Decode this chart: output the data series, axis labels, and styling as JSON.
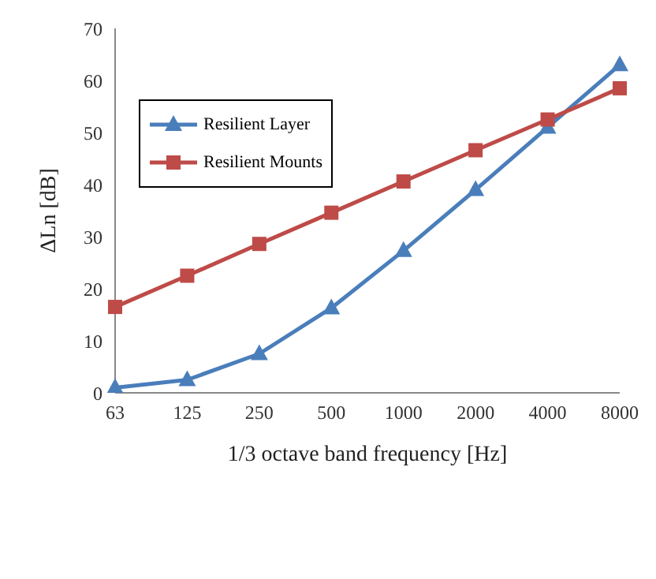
{
  "chart_data": {
    "type": "line",
    "xlabel": "1/3 octave band frequency [Hz]",
    "ylabel": "ΔLn [dB]",
    "categories": [
      "63",
      "125",
      "250",
      "500",
      "1000",
      "2000",
      "4000",
      "8000"
    ],
    "series": [
      {
        "name": "Resilient Layer",
        "color": "#4a7ebb",
        "marker": "triangle",
        "values": [
          1,
          2.5,
          7.5,
          16.3,
          27.3,
          39,
          51,
          63
        ]
      },
      {
        "name": "Resilient Mounts",
        "color": "#be4b48",
        "marker": "square",
        "values": [
          16.5,
          22.5,
          28.6,
          34.6,
          40.6,
          46.6,
          52.5,
          58.5
        ]
      }
    ],
    "ylim": [
      0,
      70
    ],
    "yticks": [
      0,
      10,
      20,
      30,
      40,
      50,
      60,
      70
    ],
    "grid": false,
    "legend": "top left",
    "line_style": "solid"
  }
}
